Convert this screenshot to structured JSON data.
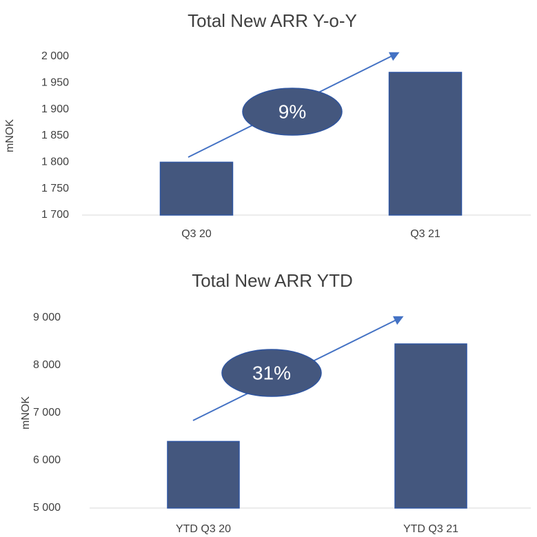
{
  "chart_data": [
    {
      "type": "bar",
      "title": "Total New ARR Y-o-Y",
      "y_label": "mNOK",
      "categories": [
        "Q3 20",
        "Q3 21"
      ],
      "values": [
        1800,
        1970
      ],
      "color": "#44577e",
      "ylim": [
        1700,
        2000
      ],
      "yticks": [
        {
          "value": 1700,
          "label": "1 700"
        },
        {
          "value": 1750,
          "label": "1 750"
        },
        {
          "value": 1800,
          "label": "1 800"
        },
        {
          "value": 1850,
          "label": "1 850"
        },
        {
          "value": 1900,
          "label": "1 900"
        },
        {
          "value": 1950,
          "label": "1 950"
        },
        {
          "value": 2000,
          "label": "2 000"
        }
      ],
      "annotation": "9%"
    },
    {
      "type": "bar",
      "title": "Total New ARR YTD",
      "y_label": "mNOK",
      "categories": [
        "YTD Q3 20",
        "YTD Q3 21"
      ],
      "values": [
        6400,
        8450
      ],
      "color": "#44577e",
      "ylim": [
        5000,
        9000
      ],
      "yticks": [
        {
          "value": 5000,
          "label": "5 000"
        },
        {
          "value": 6000,
          "label": "6 000"
        },
        {
          "value": 7000,
          "label": "7 000"
        },
        {
          "value": 8000,
          "label": "8 000"
        },
        {
          "value": 9000,
          "label": "9 000"
        }
      ],
      "annotation": "31%"
    }
  ]
}
